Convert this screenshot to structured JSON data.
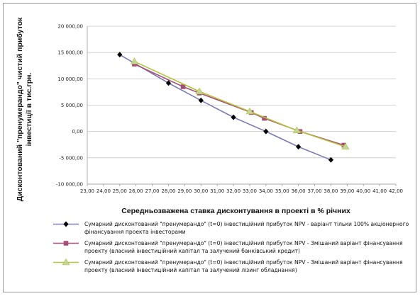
{
  "chart_data": {
    "type": "line",
    "title": "",
    "xlabel": "Середньозважена ставка дисконтування в проекті в % річних",
    "ylabel": "Дисконтований \"пренумерандо\" чистий прибуток інвестиції в тис.грн.",
    "ylabel_lines": [
      "Дисконтований \"пренумерандо\" чистий прибуток",
      "інвестиції в тис.грн."
    ],
    "xlim": [
      23,
      42
    ],
    "ylim": [
      -10000,
      20000
    ],
    "x_ticks": [
      23,
      24,
      25,
      26,
      27,
      28,
      29,
      30,
      31,
      32,
      33,
      34,
      35,
      36,
      37,
      38,
      39,
      40,
      41,
      42
    ],
    "x_tick_labels": [
      "23,00",
      "24,00",
      "25,00",
      "26,00",
      "27,00",
      "28,00",
      "29,00",
      "30,00",
      "31,00",
      "32,00",
      "33,00",
      "34,00",
      "35,00",
      "36,00",
      "37,00",
      "38,00",
      "39,00",
      "40,00",
      "41,00",
      "42,00"
    ],
    "y_ticks": [
      -10000,
      -5000,
      0,
      5000,
      10000,
      15000,
      20000
    ],
    "y_tick_labels": [
      "-10 000,00",
      "-5 000,00",
      "0,00",
      "5 000,00",
      "10 000,00",
      "15 000,00",
      "20 000,00"
    ],
    "grid": "horizontal",
    "legend_position": "bottom",
    "series": [
      {
        "name": "Сумарний дисконтований \"пренумерандо\" (t=0) інвестиційний прибуток NPV  - варіант тільки 100% акціонерного фінансування проекта інвесторами",
        "name_lines": [
          "Сумарний дисконтований \"пренумерандо\" (t=0) інвестиційний прибуток NPV  - варіант тільки 100% акціонерного",
          "фінансування проекта інвесторами"
        ],
        "color": "#7b7bb4",
        "marker": "diamond",
        "marker_color": "#000000",
        "x": [
          25,
          28,
          30,
          32,
          34,
          36,
          38
        ],
        "y": [
          14600,
          9200,
          5900,
          2700,
          0,
          -2900,
          -5400
        ]
      },
      {
        "name": "Сумарний дисконтований \"пренумерандо\" (t=0) інвестиційний прибуток NPV  - Змішаний варіант фінансування проекту (власний інвестиційний капітал та залучений банківський кредит)",
        "name_lines": [
          "Сумарний дисконтований \"пренумерандо\" (t=0) інвестиційний прибуток NPV  - Змішаний варіант фінансування",
          "проекту (власний інвестиційний капітал та залучений банківський кредит)"
        ],
        "color": "#a64e7a",
        "marker": "square",
        "marker_color": "#a64e7a",
        "x": [
          25.9,
          28.9,
          29.9,
          33.1,
          33.9,
          36.1,
          38.8
        ],
        "y": [
          12800,
          8500,
          7300,
          3600,
          2500,
          0,
          -2600
        ]
      },
      {
        "name": "Сумарний дисконтований \"пренумерандо\" (t=0) інвестиційний прибуток NPV  - Змішаний варіант фінансування проекту (власний інвестиційний капітал та залучений лізинг обладнання)",
        "name_lines": [
          "Сумарний дисконтований \"пренумерандо\" (t=0) інвестиційний прибуток NPV  - Змішаний варіант фінансування",
          "проекту (власний інвестиційний капітал та залучений лізинг обладнання)"
        ],
        "color": "#b5c23a",
        "marker": "triangle",
        "marker_color": "#c3d79b",
        "x": [
          25.9,
          29.9,
          33.0,
          35.9,
          38.9
        ],
        "y": [
          13300,
          7600,
          3800,
          200,
          -2900
        ]
      }
    ]
  }
}
